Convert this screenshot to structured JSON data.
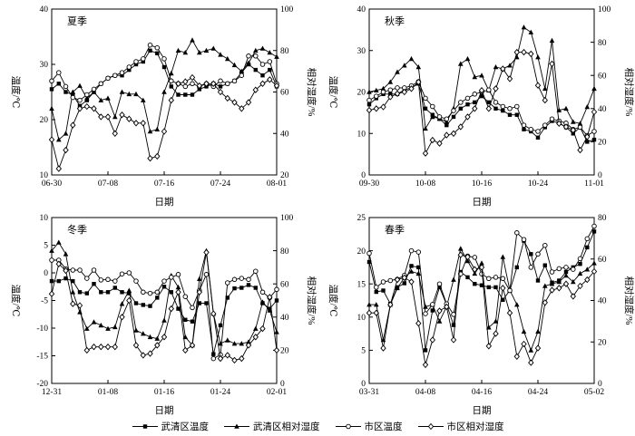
{
  "figure": {
    "background": "#ffffff",
    "line_color": "#000000"
  },
  "legend": {
    "items": [
      {
        "id": "wuqing-temperature",
        "label": "武清区温度",
        "marker": "square-filled"
      },
      {
        "id": "wuqing-humidity",
        "label": "武清区相对湿度",
        "marker": "triangle-filled"
      },
      {
        "id": "urban-temperature",
        "label": "市区温度",
        "marker": "circle-open"
      },
      {
        "id": "urban-humidity",
        "label": "市区相对湿度",
        "marker": "diamond-open"
      }
    ]
  },
  "chart_data": [
    {
      "type": "line",
      "title": "夏季",
      "xlabel": "日期",
      "ylabel_left": "温度/℃",
      "ylabel_right": "相对湿度/%",
      "n_points": 33,
      "x_tick_indices": [
        0,
        8,
        16,
        24,
        32
      ],
      "x_tick_labels": [
        "06-30",
        "07-08",
        "07-16",
        "07-24",
        "08-01"
      ],
      "ylim_left": [
        10,
        40
      ],
      "yticks_left": [
        10,
        20,
        30,
        40
      ],
      "ylim_right": [
        20,
        100
      ],
      "yticks_right": [
        20,
        40,
        60,
        80,
        100
      ],
      "grid": false,
      "series": [
        {
          "id": "wuqing-temperature",
          "name": "武清区温度",
          "axis": "left",
          "marker": "square-filled",
          "values": [
            25.5,
            26.5,
            25,
            24.5,
            22.5,
            23.5,
            25,
            26.5,
            27.5,
            28,
            28,
            29,
            30,
            30.5,
            32.5,
            32,
            29.5,
            26,
            24.5,
            24.5,
            24.5,
            25.5,
            26,
            26.5,
            26,
            26.5,
            27,
            28.5,
            30,
            29,
            28,
            29,
            26
          ]
        },
        {
          "id": "wuqing-humidity",
          "name": "武清区相对湿度",
          "axis": "right",
          "marker": "triangle-filled",
          "values": [
            52,
            37,
            40,
            60,
            63,
            57,
            60,
            56,
            57,
            48,
            60,
            59,
            59,
            56,
            41,
            42,
            60,
            69,
            80,
            79,
            85,
            79,
            80,
            81,
            78,
            76,
            73,
            70,
            74,
            80,
            81,
            79,
            77
          ]
        },
        {
          "id": "urban-temperature",
          "name": "市区温度",
          "axis": "left",
          "marker": "circle-open",
          "values": [
            27,
            28.5,
            26,
            24,
            23.5,
            24.5,
            25.5,
            26.5,
            27.5,
            28,
            28.5,
            29.5,
            30.5,
            31,
            33.5,
            33,
            31,
            27,
            26.5,
            26,
            26.5,
            26,
            26.5,
            26,
            27,
            26.5,
            27,
            28,
            31.5,
            31.5,
            30,
            30.5,
            26.5
          ]
        },
        {
          "id": "urban-humidity",
          "name": "市区相对湿度",
          "axis": "right",
          "marker": "diamond-open",
          "values": [
            37,
            23,
            32,
            44,
            52,
            53,
            52,
            48,
            48,
            40,
            49,
            47,
            45,
            45,
            28,
            29,
            41,
            56,
            64,
            65,
            67,
            63,
            64,
            64,
            60,
            57,
            55,
            52,
            55,
            61,
            64,
            66,
            63
          ]
        }
      ]
    },
    {
      "type": "line",
      "title": "秋季",
      "xlabel": "日期",
      "ylabel_left": "温度/℃",
      "ylabel_right": "相对湿度/%",
      "n_points": 33,
      "x_tick_indices": [
        0,
        8,
        16,
        24,
        32
      ],
      "x_tick_labels": [
        "09-30",
        "10-08",
        "10-16",
        "10-24",
        "11-01"
      ],
      "ylim_left": [
        0,
        40
      ],
      "yticks_left": [
        0,
        10,
        20,
        30,
        40
      ],
      "ylim_right": [
        0,
        100
      ],
      "yticks_right": [
        0,
        20,
        40,
        60,
        80,
        100
      ],
      "grid": false,
      "series": [
        {
          "id": "wuqing-temperature",
          "name": "武清区温度",
          "axis": "left",
          "marker": "square-filled",
          "values": [
            17,
            18.5,
            19.5,
            19.5,
            19.5,
            20.5,
            21,
            22,
            16,
            14.5,
            13.5,
            12,
            14,
            16,
            17,
            17.5,
            19,
            17.5,
            16,
            15.5,
            14.5,
            14.5,
            11,
            10.5,
            9,
            11.5,
            13,
            12.5,
            11.5,
            10,
            11.5,
            8,
            8.5
          ]
        },
        {
          "id": "wuqing-humidity",
          "name": "武清区相对湿度",
          "axis": "right",
          "marker": "triangle-filled",
          "values": [
            50,
            51,
            52,
            56,
            62,
            66,
            70,
            65,
            28,
            35,
            34,
            32,
            40,
            67,
            70,
            59,
            60,
            51,
            65,
            64,
            66,
            71,
            89,
            86,
            71,
            52,
            81,
            39,
            40,
            32,
            31,
            41,
            52
          ]
        },
        {
          "id": "urban-temperature",
          "name": "市区温度",
          "axis": "left",
          "marker": "circle-open",
          "values": [
            18,
            19,
            20,
            20.5,
            21,
            21,
            21.5,
            22.5,
            18.5,
            16.5,
            14,
            13.5,
            15.5,
            17.5,
            18.5,
            19.5,
            20,
            20.5,
            17.5,
            16.5,
            16,
            16.5,
            12,
            11,
            10.5,
            12,
            13.5,
            13,
            12.5,
            11,
            11.5,
            9.5,
            10.5
          ]
        },
        {
          "id": "urban-humidity",
          "name": "市区相对湿度",
          "axis": "right",
          "marker": "diamond-open",
          "values": [
            39,
            40,
            41,
            47,
            49,
            50,
            52,
            56,
            13,
            21,
            19,
            24,
            25,
            29,
            35,
            40,
            51,
            40,
            52,
            64,
            58,
            74,
            74,
            73,
            54,
            45,
            67,
            31,
            29,
            27,
            15,
            23,
            38
          ]
        }
      ]
    },
    {
      "type": "line",
      "title": "冬季",
      "xlabel": "日期",
      "ylabel_left": "温度/℃",
      "ylabel_right": "相对湿度/%",
      "n_points": 33,
      "x_tick_indices": [
        0,
        8,
        16,
        24,
        32
      ],
      "x_tick_labels": [
        "12-31",
        "01-08",
        "01-16",
        "01-24",
        "02-01"
      ],
      "ylim_left": [
        -20,
        10
      ],
      "yticks_left": [
        -20,
        -15,
        -10,
        -5,
        0,
        5,
        10
      ],
      "ylim_right": [
        0,
        100
      ],
      "yticks_right": [
        0,
        20,
        40,
        60,
        80,
        100
      ],
      "grid": false,
      "series": [
        {
          "id": "wuqing-temperature",
          "name": "武清区温度",
          "axis": "left",
          "marker": "square-filled",
          "values": [
            -1.5,
            -1.5,
            -1,
            -1.5,
            -3.5,
            -3.7,
            -2,
            -3.5,
            -3.5,
            -2.7,
            -3.5,
            -3.7,
            -5.5,
            -5.8,
            -6,
            -4.5,
            -2.5,
            -3.5,
            -6.5,
            -8.5,
            -8.8,
            -5.5,
            -5.5,
            -14.7,
            -9.5,
            -4.5,
            -2.8,
            -2.7,
            -2.2,
            -2.7,
            -5.5,
            -6.5,
            -5
          ]
        },
        {
          "id": "wuqing-humidity",
          "name": "武清区相对湿度",
          "axis": "right",
          "marker": "triangle-filled",
          "values": [
            80,
            85,
            78,
            55,
            43,
            33,
            37,
            35,
            33,
            34,
            48,
            56,
            32,
            30,
            28,
            27,
            38,
            65,
            58,
            28,
            23,
            63,
            80,
            42,
            24,
            26,
            24,
            24,
            25,
            33,
            49,
            44,
            31
          ]
        },
        {
          "id": "urban-temperature",
          "name": "市区温度",
          "axis": "left",
          "marker": "circle-open",
          "values": [
            2.3,
            2.3,
            0.7,
            0.5,
            0.5,
            -1,
            0.5,
            -1.3,
            -1.2,
            -1.5,
            -0.2,
            0,
            -1.5,
            -3.5,
            -3.7,
            -3.5,
            -1.5,
            -0.8,
            -0.3,
            -4.3,
            -6.3,
            -3.2,
            -0.3,
            -15.5,
            -14.8,
            -1.8,
            -1.2,
            -1,
            -1.2,
            0.3,
            -3.5,
            -4.5,
            -3
          ]
        },
        {
          "id": "urban-humidity",
          "name": "市区相对湿度",
          "axis": "right",
          "marker": "diamond-open",
          "values": [
            54,
            72,
            68,
            48,
            47,
            20,
            22,
            22,
            22,
            22,
            40,
            50,
            23,
            17,
            18,
            23,
            28,
            45,
            55,
            20,
            23,
            55,
            79,
            42,
            15,
            17,
            14,
            15,
            23,
            28,
            33,
            52,
            20
          ]
        }
      ]
    },
    {
      "type": "line",
      "title": "春季",
      "xlabel": "日期",
      "ylabel_left": "温度/℃",
      "ylabel_right": "相对湿度/%",
      "n_points": 33,
      "x_tick_indices": [
        0,
        8,
        16,
        24,
        32
      ],
      "x_tick_labels": [
        "03-31",
        "04-08",
        "04-16",
        "04-24",
        "05-02"
      ],
      "ylim_left": [
        0,
        25
      ],
      "yticks_left": [
        0,
        5,
        10,
        15,
        20,
        25
      ],
      "ylim_right": [
        0,
        80
      ],
      "yticks_right": [
        0,
        20,
        40,
        60,
        80
      ],
      "grid": false,
      "series": [
        {
          "id": "wuqing-temperature",
          "name": "武清区温度",
          "axis": "left",
          "marker": "square-filled",
          "values": [
            18.3,
            13.8,
            14,
            12,
            14.5,
            15.1,
            17.7,
            17.5,
            5,
            11,
            14.5,
            11.9,
            8.8,
            16.8,
            16,
            15,
            14.8,
            14.5,
            14.5,
            12.6,
            14,
            17.5,
            21.5,
            19.5,
            15.5,
            17.8,
            15.2,
            15.5,
            16.8,
            17.5,
            18,
            20.5,
            22.9
          ]
        },
        {
          "id": "wuqing-humidity",
          "name": "武清区相对湿度",
          "axis": "right",
          "marker": "triangle-filled",
          "values": [
            38,
            38,
            21,
            38,
            46,
            51,
            54,
            53,
            37,
            38,
            30,
            37,
            50,
            65,
            59,
            53,
            58,
            27,
            30,
            61,
            45,
            38,
            25,
            16,
            25,
            47,
            48,
            49,
            52,
            49,
            53,
            55,
            58
          ]
        },
        {
          "id": "urban-temperature",
          "name": "市区温度",
          "axis": "left",
          "marker": "circle-open",
          "values": [
            19.6,
            14.5,
            15.3,
            15.5,
            15.7,
            16.3,
            20,
            19.8,
            10.5,
            11.9,
            15,
            12,
            10.4,
            16.5,
            19.2,
            19,
            16.5,
            15.8,
            16,
            15.8,
            14,
            22.7,
            21.7,
            17.5,
            19.5,
            20.8,
            16.8,
            17.3,
            17.5,
            17.2,
            18.8,
            21.8,
            23.7
          ]
        },
        {
          "id": "urban-humidity",
          "name": "市区相对湿度",
          "axis": "right",
          "marker": "diamond-open",
          "values": [
            34,
            34,
            17,
            38,
            50,
            51,
            49,
            29,
            9,
            21,
            35,
            37,
            21,
            62,
            61,
            55,
            56,
            18,
            24,
            46,
            34,
            13,
            19,
            10,
            17,
            39,
            45,
            46,
            48,
            42,
            47,
            50,
            54
          ]
        }
      ]
    }
  ]
}
